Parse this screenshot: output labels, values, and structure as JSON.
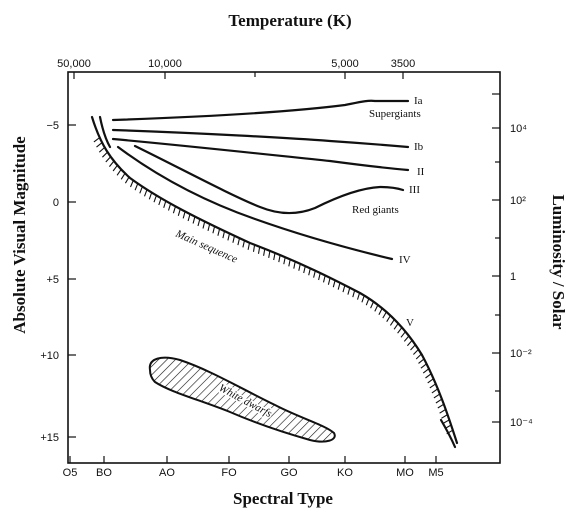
{
  "title": "Temperature (K)",
  "xlabel": "Spectral Type",
  "ylabel_left": "Absolute Visual Magnitude",
  "ylabel_right": "Luminosity / Solar",
  "temperature_ticks": [
    "50,000",
    "10,000",
    "5,000",
    "3500"
  ],
  "spectral_ticks": [
    "O5",
    "BO",
    "AO",
    "FO",
    "GO",
    "KO",
    "MO",
    "M5"
  ],
  "magnitude_ticks": [
    "−5",
    "0",
    "+5",
    "+10",
    "+15"
  ],
  "luminosity_ticks": [
    "10⁴",
    "10²",
    "1",
    "10⁻²",
    "10⁻⁴"
  ],
  "labels": {
    "ia": "Ia",
    "supergiants": "Supergiants",
    "ib": "Ib",
    "ii": "II",
    "iii": "III",
    "red_giants": "Red giants",
    "iv": "IV",
    "v": "V",
    "main_sequence": "Main sequence",
    "white_dwarfs": "White dwarfs"
  }
}
